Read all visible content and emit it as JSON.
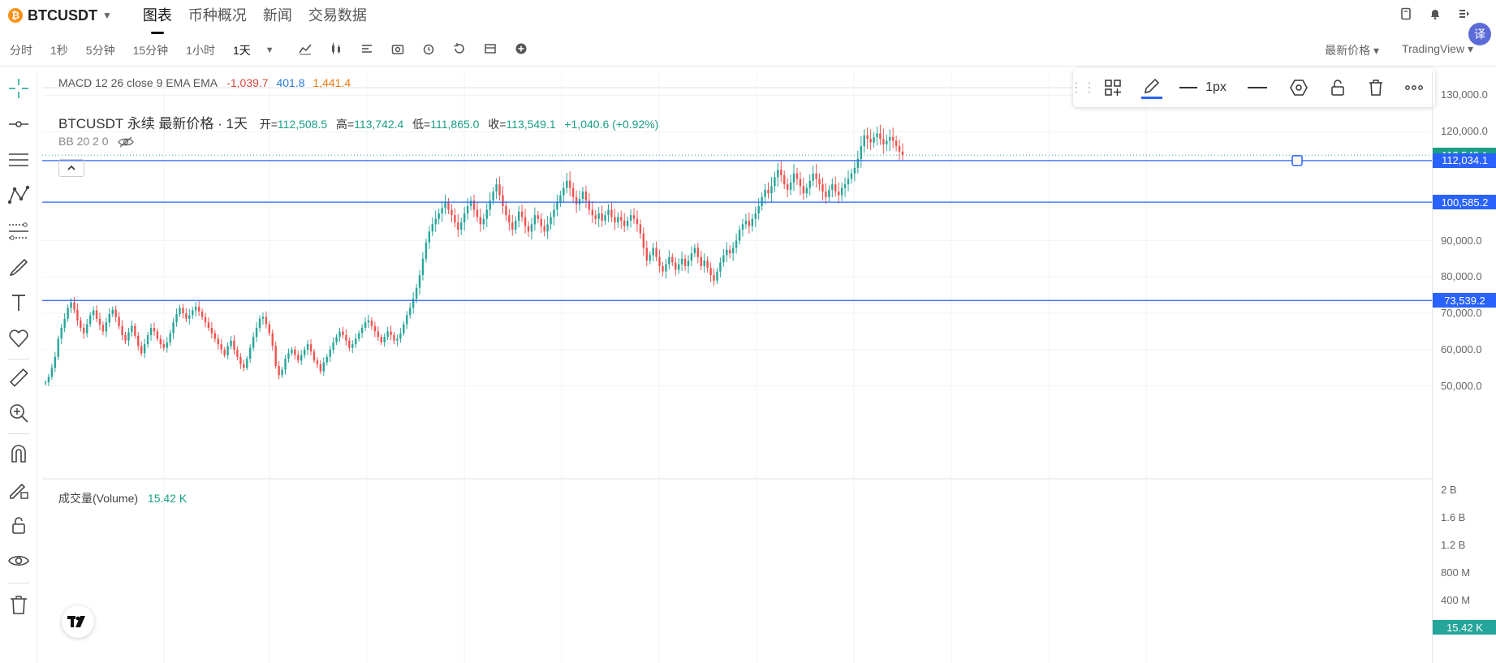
{
  "header": {
    "symbol": "BTCUSDT",
    "logo_glyph": "₿",
    "tabs": [
      {
        "label": "图表",
        "active": true
      },
      {
        "label": "币种概况",
        "active": false
      },
      {
        "label": "新闻",
        "active": false
      },
      {
        "label": "交易数据",
        "active": false
      }
    ],
    "icons": [
      "book-icon",
      "bell-icon",
      "settings-icon"
    ],
    "translate_label": "译"
  },
  "toolbar": {
    "timeframes": [
      "分时",
      "1秒",
      "5分钟",
      "15分钟",
      "1小时",
      "1天"
    ],
    "active_timeframe": "1天",
    "icons": [
      "indicator-icon",
      "candle-type-icon",
      "template-icon",
      "screenshot-icon",
      "alert-icon",
      "replay-icon",
      "layout-icon",
      "add-icon"
    ],
    "price_type": "最新价格 ▾",
    "view_mode": "TradingView ▾"
  },
  "legend": {
    "macd": {
      "label": "MACD 12 26 close 9 EMA EMA",
      "v1": "-1,039.7",
      "v2": "401.8",
      "v3": "1,441.4"
    },
    "title": "BTCUSDT 永续 最新价格 · 1天",
    "ohlc": {
      "o_label": "开=",
      "o": "112,508.5",
      "h_label": "高=",
      "h": "113,742.4",
      "l_label": "低=",
      "l": "111,865.0",
      "c_label": "收=",
      "c": "113,549.1",
      "change": "+1,040.6 (+0.92%)"
    },
    "bb": "BB 20 2 0"
  },
  "draw_toolbar": {
    "width_label": "1px"
  },
  "price_axis": {
    "ticks": [
      "130,000.0",
      "120,000.0",
      "90,000.0",
      "80,000.0",
      "70,000.0",
      "60,000.0",
      "50,000.0"
    ],
    "tick_values": [
      130000,
      120000,
      90000,
      80000,
      70000,
      60000,
      50000
    ],
    "labels": [
      {
        "text": "113,549.1",
        "value": 113549.1,
        "color": "#1a9f85"
      },
      {
        "text": "112,034.1",
        "value": 112034.1,
        "color": "#2962ff"
      },
      {
        "text": "100,585.2",
        "value": 100585.2,
        "color": "#2962ff"
      },
      {
        "text": "73,539.2",
        "value": 73539.2,
        "color": "#2962ff"
      }
    ]
  },
  "volume": {
    "label": "成交量(Volume)",
    "value": "15.42 K",
    "ticks": [
      "2 B",
      "1.6 B",
      "1.2 B",
      "800 M",
      "400 M"
    ],
    "last_label": "15.42 K"
  },
  "chart_data": {
    "type": "candlestick",
    "symbol": "BTCUSDT",
    "interval": "1天",
    "yrange": [
      45000,
      133000
    ],
    "horizontal_lines": [
      112034.1,
      100585.2,
      73539.2
    ],
    "last_price": 113549.1,
    "closes": [
      51000,
      52500,
      55000,
      58000,
      63000,
      66000,
      68500,
      71500,
      73000,
      71000,
      68000,
      66000,
      64500,
      67000,
      69500,
      70800,
      68500,
      66800,
      65000,
      67500,
      69800,
      71000,
      69000,
      66500,
      64000,
      62500,
      64800,
      66500,
      63800,
      61000,
      59000,
      61500,
      64000,
      66000,
      65000,
      63000,
      61500,
      60500,
      62000,
      64500,
      67500,
      69800,
      71500,
      70000,
      68500,
      69500,
      70800,
      71800,
      70500,
      69000,
      67500,
      66000,
      64500,
      63000,
      61500,
      60000,
      58500,
      61000,
      62500,
      60000,
      58000,
      56000,
      55000,
      57500,
      60500,
      63500,
      66000,
      68500,
      69000,
      67000,
      64500,
      61000,
      55500,
      53000,
      54500,
      57500,
      59000,
      60000,
      58500,
      57000,
      58500,
      60000,
      61500,
      59500,
      57000,
      56000,
      54000,
      56500,
      58000,
      60000,
      62000,
      63500,
      65000,
      64000,
      62500,
      60500,
      61500,
      63000,
      64500,
      66000,
      67500,
      68000,
      66500,
      65000,
      63500,
      62000,
      63500,
      65000,
      64000,
      62500,
      63000,
      64500,
      67000,
      69500,
      71500,
      74000,
      77000,
      80500,
      85000,
      89500,
      92500,
      94500,
      96000,
      97500,
      99000,
      100500,
      98500,
      97000,
      95000,
      93000,
      95000,
      97500,
      99500,
      101000,
      98500,
      96500,
      94500,
      96000,
      98500,
      101000,
      103500,
      105500,
      102500,
      99500,
      97000,
      95000,
      93000,
      95500,
      98000,
      96500,
      94000,
      92500,
      94500,
      97000,
      96000,
      94000,
      92500,
      94500,
      96500,
      98500,
      100500,
      102500,
      104500,
      106500,
      104500,
      102000,
      100000,
      101500,
      103500,
      101000,
      98500,
      97000,
      96000,
      97500,
      95500,
      97000,
      98500,
      96500,
      95000,
      96500,
      95500,
      94000,
      95500,
      97000,
      96000,
      94500,
      92000,
      88000,
      84500,
      86000,
      88000,
      85500,
      83000,
      81500,
      83500,
      85500,
      84000,
      82000,
      83500,
      85000,
      83000,
      84500,
      86500,
      88000,
      85500,
      83000,
      84500,
      82500,
      80500,
      79000,
      81500,
      84000,
      86000,
      87500,
      86500,
      88000,
      90000,
      93000,
      94500,
      95500,
      94000,
      96000,
      97500,
      99500,
      102000,
      104000,
      103000,
      105000,
      107500,
      109500,
      108000,
      105500,
      104000,
      106000,
      108500,
      107000,
      105000,
      103000,
      104500,
      106500,
      108500,
      107000,
      105500,
      103500,
      102000,
      104000,
      105500,
      103500,
      102500,
      104500,
      105500,
      107000,
      108500,
      110000,
      112500,
      116000,
      119000,
      118000,
      117000,
      118500,
      119500,
      118000,
      116500,
      117500,
      118500,
      117500,
      116000,
      114500,
      113549.1
    ]
  }
}
